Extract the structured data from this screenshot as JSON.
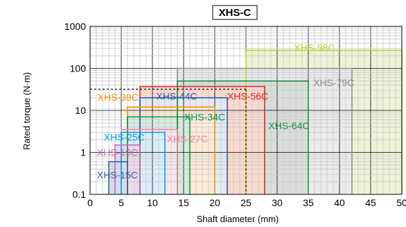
{
  "chart_data": {
    "type": "area",
    "title": "XHS-C",
    "xlabel": "Shaft diameter (mm)",
    "ylabel": "Rated torque (N·m)",
    "xlim": [
      0,
      50
    ],
    "ylim": [
      0.1,
      1000
    ],
    "yscale": "log",
    "x_ticks": [
      0,
      5,
      10,
      15,
      20,
      25,
      30,
      35,
      40,
      45,
      50
    ],
    "y_ticks": [
      {
        "value": 0.1,
        "label": "0.1"
      },
      {
        "value": 1,
        "label": "1"
      },
      {
        "value": 10,
        "label": "10"
      },
      {
        "value": 100,
        "label": "100"
      },
      {
        "value": 1000,
        "label": "1000"
      }
    ],
    "grid": true,
    "series": [
      {
        "name": "XHS-98C",
        "x_range": [
          25,
          50
        ],
        "max_torque": 270,
        "fill": "#eef3d6",
        "stroke": "#b5d334",
        "label_color": "#b5d334",
        "label_pos": [
          32.7,
          260
        ]
      },
      {
        "name": "XHS-79C",
        "x_range": [
          14,
          42
        ],
        "max_torque": 100,
        "fill": "#ebebeb",
        "stroke": "#909090",
        "label_color": "#8c8c8c",
        "label_pos": [
          35.8,
          38
        ]
      },
      {
        "name": "XHS-64C",
        "x_range": [
          14,
          35
        ],
        "max_torque": 50,
        "fill": "#d8dfd8",
        "stroke": "#1e8a46",
        "label_color": "#1e8a46",
        "label_pos": [
          28.6,
          3.6
        ]
      },
      {
        "name": "XHS-56C",
        "x_range": [
          8,
          28
        ],
        "max_torque": 37,
        "fill": "#fad9cc",
        "stroke": "#e6202b",
        "label_color": "#e6202b",
        "label_pos": [
          22,
          18
        ]
      },
      {
        "name": "XHS-44C",
        "x_range": [
          8,
          22
        ],
        "max_torque": 20,
        "fill": "#e3eaf3",
        "stroke": "#2c5ea8",
        "label_color": "#2c5ea8",
        "label_pos": [
          10.6,
          18
        ]
      },
      {
        "name": "XHS-39C",
        "x_range": [
          6,
          20
        ],
        "max_torque": 12,
        "fill": "#fdecd6",
        "stroke": "#f39200",
        "label_color": "#f39200",
        "label_pos": [
          1.2,
          17
        ]
      },
      {
        "name": "XHS-34C",
        "x_range": [
          6,
          16
        ],
        "max_torque": 7,
        "fill": "#d7ebdd",
        "stroke": "#009944",
        "label_color": "#009944",
        "label_pos": [
          15.1,
          5.8
        ]
      },
      {
        "name": "XHS-27C",
        "x_range": [
          5,
          14
        ],
        "max_torque": 3.5,
        "fill": "#fbe6ec",
        "stroke": "#ef86a8",
        "label_color": "#ef86a8",
        "label_pos": [
          12.3,
          1.75
        ]
      },
      {
        "name": "XHS-25C",
        "x_range": [
          5,
          12
        ],
        "max_torque": 3,
        "fill": "#daeef9",
        "stroke": "#00a0e9",
        "label_color": "#00a0e9",
        "label_pos": [
          2.2,
          1.9
        ]
      },
      {
        "name": "XHS-19C",
        "x_range": [
          4,
          8
        ],
        "max_torque": 1.5,
        "fill": "#ecdaec",
        "stroke": "#c06cb4",
        "label_color": "#c06cb4",
        "label_pos": [
          1.1,
          0.82
        ]
      },
      {
        "name": "XHS-15C",
        "x_range": [
          3,
          6
        ],
        "max_torque": 0.6,
        "fill": "#d6deea",
        "stroke": "#3a5f9f",
        "label_color": "#3a5f9f",
        "label_pos": [
          1.1,
          0.24
        ]
      }
    ],
    "reference": {
      "x": 25,
      "y": 32
    }
  }
}
